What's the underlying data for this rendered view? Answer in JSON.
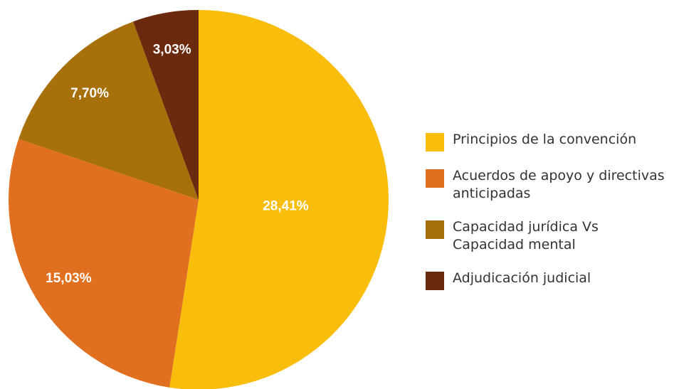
{
  "chart_data": {
    "type": "pie",
    "categories": [
      "Principios de la convención",
      "Acuerdos de apoyo y directivas anticipadas",
      "Capacidad jurídica Vs Capacidad mental",
      "Adjudicación judicial"
    ],
    "values": [
      28.41,
      15.03,
      7.7,
      3.03
    ],
    "value_labels": [
      "28,41%",
      "15,03%",
      "7,70%",
      "3,03%"
    ],
    "colors": [
      "#f9bd0b",
      "#e0701f",
      "#a8700b",
      "#6b2a0e"
    ],
    "legend": "right"
  }
}
